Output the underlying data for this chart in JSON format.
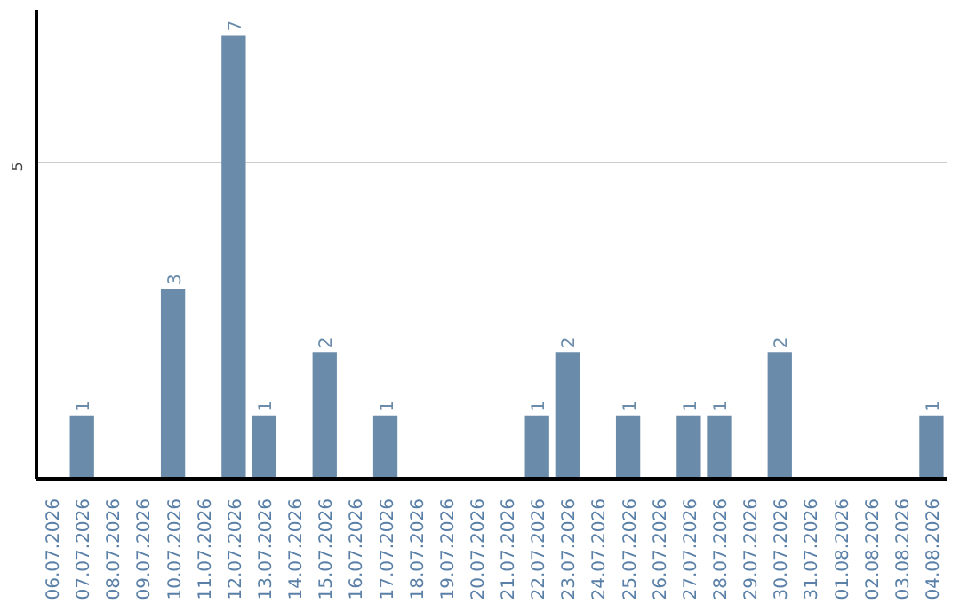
{
  "chart_data": {
    "type": "bar",
    "categories": [
      "06.07.2026",
      "07.07.2026",
      "08.07.2026",
      "09.07.2026",
      "10.07.2026",
      "11.07.2026",
      "12.07.2026",
      "13.07.2026",
      "14.07.2026",
      "15.07.2026",
      "16.07.2026",
      "17.07.2026",
      "18.07.2026",
      "19.07.2026",
      "20.07.2026",
      "21.07.2026",
      "22.07.2026",
      "23.07.2026",
      "24.07.2026",
      "25.07.2026",
      "26.07.2026",
      "27.07.2026",
      "28.07.2026",
      "29.07.2026",
      "30.07.2026",
      "31.07.2026",
      "01.08.2026",
      "02.08.2026",
      "03.08.2026",
      "04.08.2026"
    ],
    "values": [
      0,
      1,
      0,
      0,
      3,
      0,
      7,
      1,
      0,
      2,
      0,
      1,
      0,
      0,
      0,
      0,
      1,
      2,
      0,
      1,
      0,
      1,
      1,
      0,
      2,
      0,
      0,
      0,
      0,
      1
    ],
    "value_labels": [
      null,
      "1",
      null,
      null,
      "3",
      null,
      "7",
      "1",
      null,
      "2",
      null,
      "1",
      null,
      null,
      null,
      null,
      "1",
      "2",
      null,
      "1",
      null,
      "1",
      "1",
      null,
      "2",
      null,
      null,
      null,
      null,
      "1"
    ],
    "color": "#6a8caa",
    "ylim": [
      0,
      7.4
    ],
    "yticks": [
      5
    ],
    "grid": "y"
  }
}
